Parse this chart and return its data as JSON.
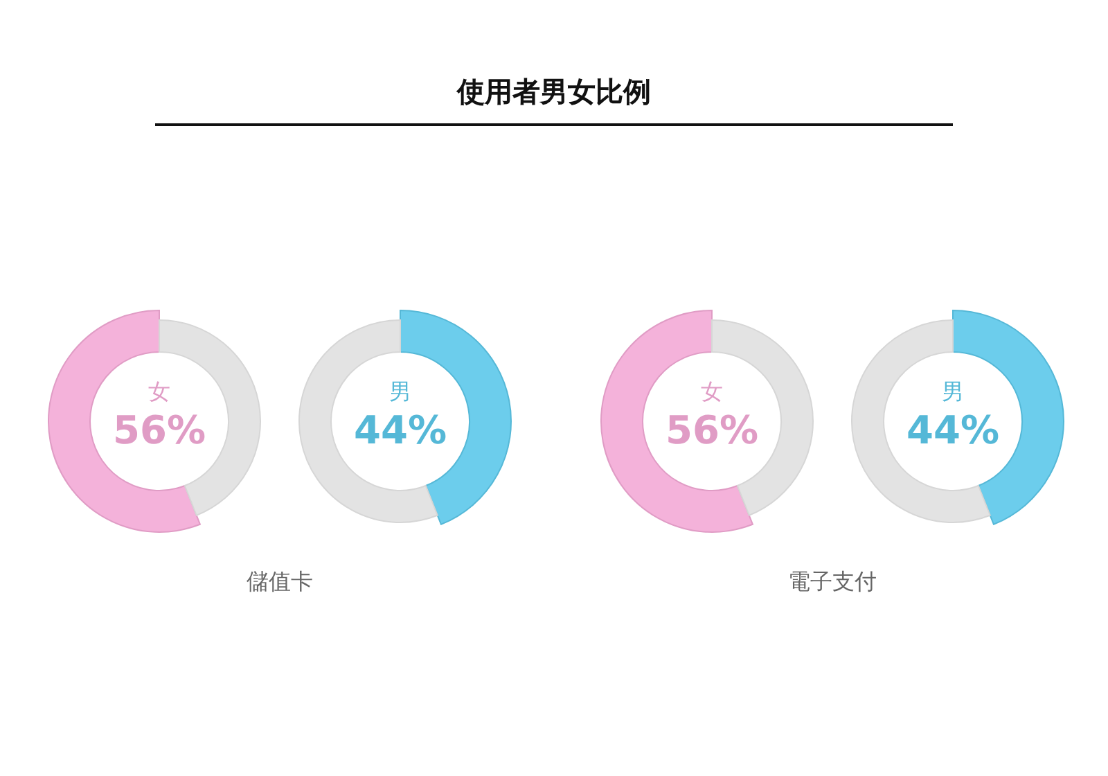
{
  "chart_data": [
    {
      "type": "donut",
      "title": "使用者男女比例",
      "categories": [
        "女",
        null
      ],
      "values": [
        56,
        44
      ],
      "colors": [
        "#f3aad6",
        "#e3e3e3"
      ],
      "value_labels": [
        "56%",
        null
      ],
      "annotations": [
        "儲值卡"
      ]
    },
    {
      "type": "donut",
      "categories": [
        "男",
        null
      ],
      "values": [
        44,
        56
      ],
      "colors": [
        "#5cc8ea",
        "#e3e3e3"
      ],
      "value_labels": [
        "44%",
        null
      ]
    },
    {
      "type": "donut",
      "categories": [
        "女",
        null
      ],
      "values": [
        56,
        44
      ],
      "colors": [
        "#f3aad6",
        "#e3e3e3"
      ],
      "value_labels": [
        "56%",
        null
      ],
      "annotations": [
        "電子支付"
      ]
    },
    {
      "type": "donut",
      "categories": [
        "男",
        null
      ],
      "values": [
        44,
        56
      ],
      "colors": [
        "#5cc8ea",
        "#e3e3e3"
      ],
      "value_labels": [
        "44%",
        null
      ]
    }
  ]
}
